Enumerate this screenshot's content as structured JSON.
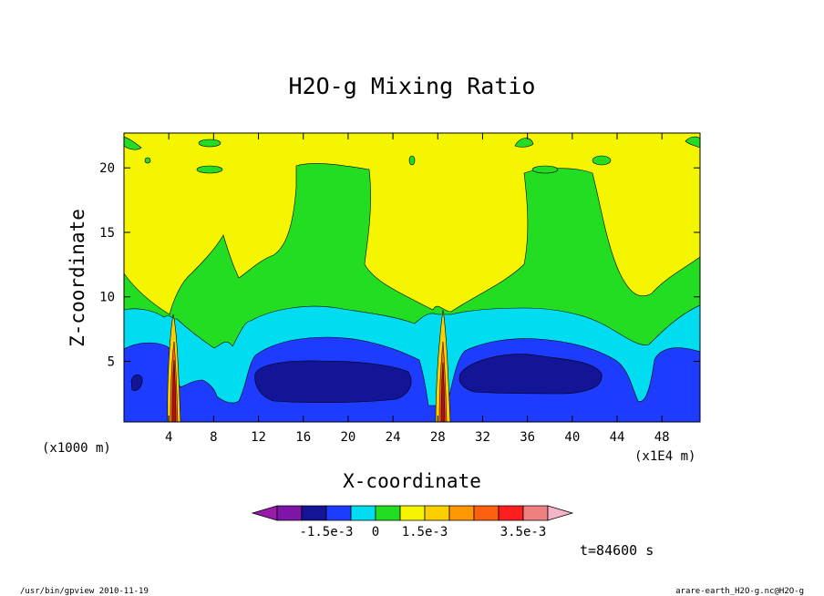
{
  "chart_data": {
    "type": "heatmap",
    "title": "H2O-g Mixing Ratio",
    "xlabel": "X-coordinate",
    "ylabel": "Z-coordinate",
    "x_unit_left": "(x1000 m)",
    "x_unit_right": "(x1E4 m)",
    "xlim": [
      0,
      51.4
    ],
    "ylim": [
      0.3,
      22.7
    ],
    "x_ticks": [
      4,
      8,
      12,
      16,
      20,
      24,
      28,
      32,
      36,
      40,
      44,
      48
    ],
    "y_ticks": [
      5,
      10,
      15,
      20
    ],
    "time_label": "t=84600 s",
    "colorbar": {
      "colors": [
        "#9a1aaa",
        "#7e14a8",
        "#141496",
        "#1e3cff",
        "#00ddf0",
        "#22dd22",
        "#f5f500",
        "#fdcf00",
        "#ff9800",
        "#ff6010",
        "#ff1e1e",
        "#f08080",
        "#f6b4c8"
      ],
      "labels": [
        {
          "text": "-1.5e-3",
          "boundary": 3
        },
        {
          "text": "0",
          "boundary": 5
        },
        {
          "text": "1.5e-3",
          "boundary": 7
        },
        {
          "text": "3.5e-3",
          "boundary": 11
        }
      ]
    },
    "regions": [
      {
        "name": "upper-yellow",
        "level": 6
      },
      {
        "name": "green-band",
        "level": 5
      },
      {
        "name": "cyan-band",
        "level": 4
      },
      {
        "name": "blue-band",
        "level": 3
      },
      {
        "name": "dark-blue-core",
        "level": 2
      },
      {
        "name": "updraft-columns",
        "level": 8
      }
    ]
  },
  "footer": {
    "left": "/usr/bin/gpview  2010-11-19",
    "right": "arare-earth_H2O-g.nc@H2O-g"
  }
}
